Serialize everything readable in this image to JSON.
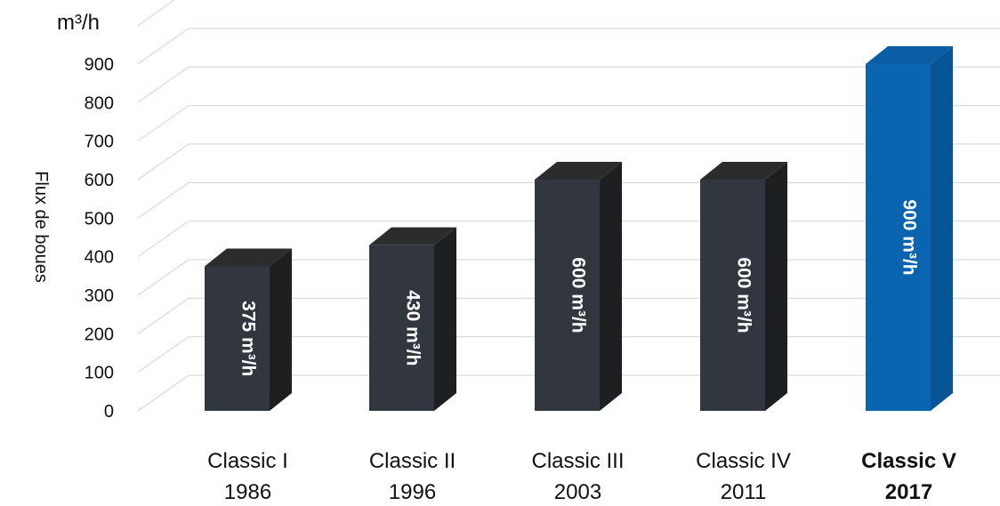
{
  "chart_data": {
    "type": "bar",
    "style": "3d-columns",
    "unit_label": "m³/h",
    "ylabel": "Flux de boues",
    "ylim": [
      0,
      900
    ],
    "yticks": [
      0,
      100,
      200,
      300,
      400,
      500,
      600,
      700,
      800,
      900
    ],
    "grid": true,
    "categories": [
      {
        "name": "Classic I",
        "year": "1986",
        "bold": false
      },
      {
        "name": "Classic II",
        "year": "1996",
        "bold": false
      },
      {
        "name": "Classic III",
        "year": "2003",
        "bold": false
      },
      {
        "name": "Classic IV",
        "year": "2011",
        "bold": false
      },
      {
        "name": "Classic V",
        "year": "2017",
        "bold": true
      }
    ],
    "values": [
      375,
      430,
      600,
      600,
      900
    ],
    "bar_labels": [
      "375 m³/h",
      "430 m³/h",
      "600 m³/h",
      "600 m³/h",
      "900 m³/h"
    ],
    "colors": [
      "#31363F",
      "#31363F",
      "#31363F",
      "#31363F",
      "#0A64B0"
    ],
    "side_colors": [
      "#1E1F20",
      "#1E1F20",
      "#1E1F20",
      "#1E1F20",
      "#075496"
    ],
    "top_colors": [
      "#2B2C2E",
      "#2B2C2E",
      "#2B2C2E",
      "#2B2C2E",
      "#0B5EA6"
    ],
    "grid_color": "#DADADA"
  }
}
